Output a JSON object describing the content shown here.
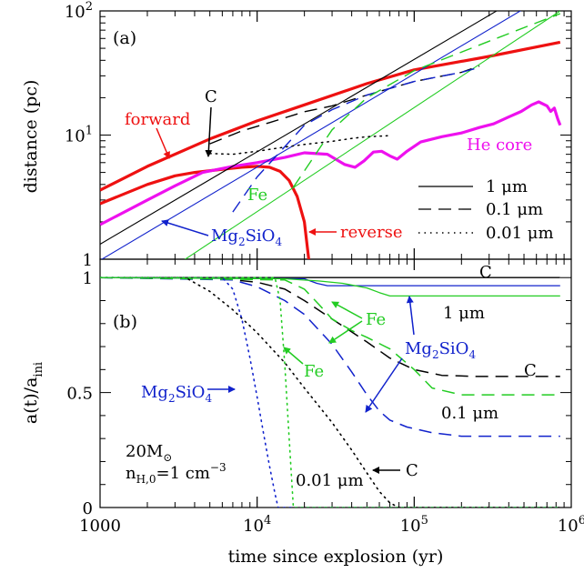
{
  "figure": {
    "xlabel": "time since explosion (yr)",
    "x_ticks": [
      {
        "value": 1000,
        "base": "1000",
        "exp": ""
      },
      {
        "value": 10000,
        "base": "10",
        "exp": "4"
      },
      {
        "value": 100000,
        "base": "10",
        "exp": "5"
      },
      {
        "value": 1000000,
        "base": "10",
        "exp": "6"
      }
    ]
  },
  "chart_data": [
    {
      "panel_label": "(a)",
      "type": "line",
      "ylabel": "distance (pc)",
      "xscale": "log",
      "yscale": "log",
      "xlim": [
        1000,
        1000000
      ],
      "ylim": [
        1,
        100
      ],
      "y_ticks": [
        {
          "value": 1,
          "base": "1",
          "exp": ""
        },
        {
          "value": 10,
          "base": "10",
          "exp": "1"
        },
        {
          "value": 100,
          "base": "10",
          "exp": "2"
        }
      ],
      "legend": {
        "position": "lower-right",
        "entries": [
          {
            "label": "1 μm",
            "style": "solid"
          },
          {
            "label": "0.1 μm",
            "style": "dashed"
          },
          {
            "label": "0.01 μm",
            "style": "dotted"
          }
        ]
      },
      "series": [
        {
          "name": "forward",
          "color": "#ee1111",
          "style": "solid",
          "width": 3.2,
          "points": [
            [
              1000,
              3.6
            ],
            [
              2000,
              5.6
            ],
            [
              5000,
              9.3
            ],
            [
              10000,
              13.0
            ],
            [
              20000,
              17.5
            ],
            [
              50000,
              26.0
            ],
            [
              100000,
              33.5
            ],
            [
              300000,
              43.0
            ],
            [
              850000,
              56.0
            ]
          ]
        },
        {
          "name": "reverse",
          "color": "#ee1111",
          "style": "solid",
          "width": 3.2,
          "points": [
            [
              1000,
              2.8
            ],
            [
              2000,
              4.0
            ],
            [
              3000,
              4.7
            ],
            [
              4000,
              5.0
            ],
            [
              6000,
              5.3
            ],
            [
              8000,
              5.5
            ],
            [
              10000,
              5.6
            ],
            [
              12000,
              5.5
            ],
            [
              14000,
              5.1
            ],
            [
              16000,
              4.3
            ],
            [
              18000,
              3.2
            ],
            [
              20000,
              2.0
            ],
            [
              21300,
              1.0
            ]
          ]
        },
        {
          "name": "He core",
          "color": "#ee11ee",
          "style": "solid",
          "width": 3.2,
          "points": [
            [
              1000,
              1.9
            ],
            [
              2000,
              3.0
            ],
            [
              3000,
              3.9
            ],
            [
              4500,
              5.0
            ],
            [
              7000,
              5.6
            ],
            [
              10000,
              6.0
            ],
            [
              15000,
              6.6
            ],
            [
              20000,
              7.2
            ],
            [
              28000,
              7.0
            ],
            [
              36000,
              5.8
            ],
            [
              42000,
              5.5
            ],
            [
              48000,
              6.2
            ],
            [
              55000,
              7.3
            ],
            [
              62000,
              7.4
            ],
            [
              70000,
              6.8
            ],
            [
              78000,
              6.4
            ],
            [
              90000,
              7.4
            ],
            [
              110000,
              8.8
            ],
            [
              150000,
              9.7
            ],
            [
              200000,
              10.4
            ],
            [
              260000,
              11.5
            ],
            [
              320000,
              12.3
            ],
            [
              400000,
              14.0
            ],
            [
              480000,
              15.5
            ],
            [
              560000,
              17.5
            ],
            [
              620000,
              18.5
            ],
            [
              700000,
              17.2
            ],
            [
              740000,
              15.5
            ],
            [
              780000,
              16.5
            ],
            [
              820000,
              13.5
            ],
            [
              850000,
              12.0
            ]
          ]
        },
        {
          "name": "C 1 μm",
          "color": "#000000",
          "style": "solid",
          "width": 1.1,
          "points": [
            [
              1000,
              1.32
            ],
            [
              850000,
              200
            ]
          ]
        },
        {
          "name": "Mg2SiO4 1 μm",
          "color": "#1122cc",
          "style": "solid",
          "width": 1.1,
          "points": [
            [
              1000,
              0.98
            ],
            [
              850000,
              155
            ]
          ]
        },
        {
          "name": "Fe 1 μm",
          "color": "#22cc22",
          "style": "solid",
          "width": 1.1,
          "points": [
            [
              3400,
              0.98
            ],
            [
              850000,
              100
            ]
          ]
        },
        {
          "name": "C 0.1 μm",
          "color": "#000000",
          "style": "dashed",
          "width": 1.4,
          "points": [
            [
              5000,
              8.5
            ],
            [
              8000,
              10.8
            ],
            [
              12000,
              12.6
            ],
            [
              20000,
              15.4
            ],
            [
              30000,
              17.2
            ],
            [
              50000,
              21.0
            ],
            [
              100000,
              27.0
            ],
            [
              200000,
              32.0
            ],
            [
              260000,
              36.0
            ]
          ]
        },
        {
          "name": "Mg2SiO4 0.1 μm",
          "color": "#1122cc",
          "style": "dashed",
          "width": 1.4,
          "points": [
            [
              7000,
              2.4
            ],
            [
              10000,
              4.6
            ],
            [
              20000,
              12.0
            ],
            [
              30000,
              16.0
            ],
            [
              50000,
              21.0
            ],
            [
              100000,
              27.0
            ],
            [
              200000,
              32.0
            ],
            [
              260000,
              35.0
            ]
          ]
        },
        {
          "name": "Fe 0.1 μm",
          "color": "#22cc22",
          "style": "dashed",
          "width": 1.4,
          "points": [
            [
              17000,
              3.8
            ],
            [
              30000,
              11.0
            ],
            [
              50000,
              20.0
            ],
            [
              100000,
              33.0
            ],
            [
              300000,
              57.0
            ],
            [
              850000,
              95.0
            ]
          ]
        },
        {
          "name": "C 0.01 μm",
          "color": "#000000",
          "style": "dotted",
          "width": 1.5,
          "points": [
            [
              5000,
              7.1
            ],
            [
              7000,
              7.0
            ],
            [
              10000,
              7.4
            ],
            [
              15000,
              8.0
            ],
            [
              20000,
              8.4
            ],
            [
              30000,
              8.9
            ],
            [
              40000,
              9.4
            ],
            [
              50000,
              9.7
            ],
            [
              60000,
              9.8
            ],
            [
              70000,
              9.9
            ]
          ]
        }
      ],
      "annotations": [
        {
          "text": "forward",
          "color": "#ee1111"
        },
        {
          "text": "reverse",
          "color": "#ee1111"
        },
        {
          "text": "He core",
          "color": "#ee11ee"
        },
        {
          "text": "C",
          "color": "#000000"
        },
        {
          "text": "Fe",
          "color": "#22cc22"
        },
        {
          "text": "Mg",
          "sub1": "2",
          "mid": "SiO",
          "sub2": "4",
          "color": "#1122cc"
        }
      ]
    },
    {
      "panel_label": "(b)",
      "type": "line",
      "ylabel": "a(t)/a",
      "ylabel_sub": "ini",
      "xscale": "log",
      "yscale": "linear",
      "xlim": [
        1000,
        1000000
      ],
      "ylim": [
        0,
        1.08
      ],
      "y_ticks": [
        {
          "value": 0,
          "label": "0"
        },
        {
          "value": 0.5,
          "label": "0.5"
        },
        {
          "value": 1,
          "label": "1"
        }
      ],
      "series": [
        {
          "name": "C 1 μm",
          "color": "#000000",
          "style": "solid",
          "width": 1.3,
          "points": [
            [
              1000,
              1.0
            ],
            [
              850000,
              1.0
            ]
          ]
        },
        {
          "name": "Mg2SiO4 1 μm",
          "color": "#1122cc",
          "style": "solid",
          "width": 1.3,
          "points": [
            [
              1000,
              1.0
            ],
            [
              20000,
              0.995
            ],
            [
              24000,
              0.975
            ],
            [
              28000,
              0.965
            ],
            [
              850000,
              0.965
            ]
          ]
        },
        {
          "name": "Fe 1 μm",
          "color": "#22cc22",
          "style": "solid",
          "width": 1.3,
          "points": [
            [
              1000,
              1.0
            ],
            [
              15000,
              0.995
            ],
            [
              25000,
              0.985
            ],
            [
              35000,
              0.975
            ],
            [
              50000,
              0.955
            ],
            [
              60000,
              0.935
            ],
            [
              70000,
              0.92
            ],
            [
              850000,
              0.92
            ]
          ]
        },
        {
          "name": "C 0.1 μm",
          "color": "#000000",
          "style": "dashed",
          "width": 1.5,
          "points": [
            [
              1000,
              1.0
            ],
            [
              6000,
              0.995
            ],
            [
              10000,
              0.98
            ],
            [
              15000,
              0.95
            ],
            [
              20000,
              0.9
            ],
            [
              30000,
              0.82
            ],
            [
              50000,
              0.72
            ],
            [
              70000,
              0.65
            ],
            [
              100000,
              0.6
            ],
            [
              150000,
              0.575
            ],
            [
              250000,
              0.57
            ],
            [
              850000,
              0.57
            ]
          ]
        },
        {
          "name": "Mg2SiO4 0.1 μm",
          "color": "#1122cc",
          "style": "dashed",
          "width": 1.5,
          "points": [
            [
              1000,
              1.0
            ],
            [
              7000,
              0.99
            ],
            [
              10000,
              0.96
            ],
            [
              15000,
              0.9
            ],
            [
              20000,
              0.84
            ],
            [
              30000,
              0.71
            ],
            [
              40000,
              0.59
            ],
            [
              50000,
              0.49
            ],
            [
              60000,
              0.42
            ],
            [
              70000,
              0.38
            ],
            [
              90000,
              0.35
            ],
            [
              130000,
              0.325
            ],
            [
              200000,
              0.31
            ],
            [
              850000,
              0.31
            ]
          ]
        },
        {
          "name": "Fe 0.1 μm",
          "color": "#22cc22",
          "style": "dashed",
          "width": 1.5,
          "points": [
            [
              1000,
              1.0
            ],
            [
              15000,
              0.99
            ],
            [
              20000,
              0.95
            ],
            [
              25000,
              0.88
            ],
            [
              30000,
              0.82
            ],
            [
              40000,
              0.77
            ],
            [
              50000,
              0.74
            ],
            [
              70000,
              0.69
            ],
            [
              100000,
              0.6
            ],
            [
              130000,
              0.52
            ],
            [
              200000,
              0.49
            ],
            [
              850000,
              0.49
            ]
          ]
        },
        {
          "name": "C 0.01 μm",
          "color": "#000000",
          "style": "dotted",
          "width": 1.6,
          "points": [
            [
              1000,
              1.0
            ],
            [
              3500,
              1.0
            ],
            [
              5000,
              0.94
            ],
            [
              7000,
              0.86
            ],
            [
              10000,
              0.76
            ],
            [
              15000,
              0.63
            ],
            [
              20000,
              0.52
            ],
            [
              30000,
              0.37
            ],
            [
              40000,
              0.25
            ],
            [
              50000,
              0.15
            ],
            [
              60000,
              0.07
            ],
            [
              70000,
              0.02
            ],
            [
              80000,
              0.0
            ],
            [
              850000,
              0.0
            ]
          ]
        },
        {
          "name": "Mg2SiO4 0.01 μm",
          "color": "#1122cc",
          "style": "dotted",
          "width": 1.6,
          "points": [
            [
              1000,
              1.0
            ],
            [
              6000,
              1.0
            ],
            [
              7000,
              0.95
            ],
            [
              8000,
              0.82
            ],
            [
              9000,
              0.65
            ],
            [
              10000,
              0.48
            ],
            [
              11000,
              0.32
            ],
            [
              12000,
              0.18
            ],
            [
              13000,
              0.06
            ],
            [
              13600,
              0.0
            ],
            [
              850000,
              0.0
            ]
          ]
        },
        {
          "name": "Fe 0.01 μm",
          "color": "#22cc22",
          "style": "dotted",
          "width": 1.6,
          "points": [
            [
              1000,
              1.0
            ],
            [
              13000,
              1.0
            ],
            [
              14000,
              0.9
            ],
            [
              15000,
              0.62
            ],
            [
              16000,
              0.3
            ],
            [
              17000,
              0.0
            ],
            [
              850000,
              0.0
            ]
          ]
        }
      ],
      "annotations": [
        {
          "text": "C",
          "color": "#000000"
        },
        {
          "text": "1 μm",
          "color": "#000000"
        },
        {
          "text": "0.1 μm",
          "color": "#000000"
        },
        {
          "text": "0.01 μm",
          "color": "#000000"
        },
        {
          "text": "Fe",
          "color": "#22cc22"
        },
        {
          "text": "Mg",
          "sub1": "2",
          "mid": "SiO",
          "sub2": "4",
          "color": "#1122cc"
        },
        {
          "text": "20M",
          "sub": "⊙",
          "color": "#000000"
        },
        {
          "text": "n",
          "sub": "H,0",
          "rest": "=1 cm",
          "sup": "−3",
          "color": "#000000"
        }
      ]
    }
  ]
}
